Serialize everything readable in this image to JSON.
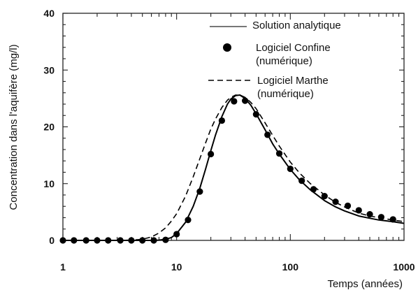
{
  "chart_data": {
    "type": "line",
    "title": "",
    "xlabel": "Temps (années)",
    "ylabel": "Concentration dans l'aquifère (mg/l)",
    "xscale": "log",
    "xlim": [
      1,
      1000
    ],
    "ylim": [
      0,
      40
    ],
    "xticks": [
      {
        "value": 1,
        "label": "1"
      },
      {
        "value": 10,
        "label": "10"
      },
      {
        "value": 100,
        "label": "100"
      },
      {
        "value": 1000,
        "label": "1000"
      }
    ],
    "yticks": [
      {
        "value": 0,
        "label": "0"
      },
      {
        "value": 10,
        "label": "10"
      },
      {
        "value": 20,
        "label": "20"
      },
      {
        "value": 30,
        "label": "30"
      },
      {
        "value": 40,
        "label": "40"
      }
    ],
    "grid": false,
    "legend_position": "top-right",
    "series": [
      {
        "name": "Solution analytique",
        "style": "solid",
        "x": [
          1,
          3,
          5,
          6,
          7,
          8,
          9,
          10,
          12,
          14,
          16,
          18,
          20,
          22,
          25,
          28,
          30,
          33,
          36,
          40,
          45,
          50,
          60,
          70,
          80,
          100,
          120,
          150,
          200,
          250,
          300,
          400,
          500,
          600,
          800,
          1000
        ],
        "y": [
          0,
          0,
          0,
          0,
          0.05,
          0.2,
          0.5,
          1.2,
          3.2,
          6.0,
          9.2,
          12.6,
          15.8,
          18.6,
          21.8,
          24.0,
          24.9,
          25.5,
          25.6,
          25.0,
          23.8,
          22.3,
          19.5,
          17.0,
          15.2,
          12.5,
          10.7,
          8.9,
          7.0,
          5.9,
          5.2,
          4.3,
          3.9,
          3.6,
          3.3,
          3.0
        ]
      },
      {
        "name": "Logiciel Confine\n(numérique)",
        "style": "markers",
        "x": [
          1,
          1.25,
          1.6,
          2,
          2.5,
          3.2,
          4,
          5,
          6.3,
          8,
          10,
          12.6,
          16,
          20,
          25,
          32,
          40,
          50,
          63,
          80,
          100,
          126,
          160,
          200,
          250,
          320,
          400,
          500,
          630,
          800
        ],
        "y": [
          0,
          0,
          0,
          0,
          0,
          0,
          0,
          0,
          0,
          0.1,
          1.1,
          3.6,
          8.6,
          15.2,
          21.1,
          24.5,
          24.6,
          22.2,
          18.6,
          15.3,
          12.6,
          10.5,
          9.0,
          7.8,
          6.8,
          6.1,
          5.3,
          4.6,
          4.1,
          3.7
        ]
      },
      {
        "name": "Logiciel Marthe\n(numérique)",
        "style": "dashed",
        "x": [
          1,
          3,
          4,
          5,
          6,
          7,
          8,
          9,
          10,
          12,
          14,
          16,
          18,
          20,
          22,
          25,
          28,
          30,
          33,
          36,
          40,
          45,
          50,
          60,
          70,
          80,
          100,
          120,
          150,
          200,
          250,
          300,
          400,
          500,
          600,
          800,
          1000
        ],
        "y": [
          0,
          0,
          0.05,
          0.2,
          0.6,
          1.3,
          2.2,
          3.4,
          4.7,
          7.8,
          11.2,
          14.4,
          17.2,
          19.6,
          21.4,
          23.4,
          24.7,
          25.2,
          25.6,
          25.6,
          25.2,
          24.3,
          23.2,
          20.7,
          18.5,
          16.6,
          13.8,
          11.9,
          10.0,
          8.0,
          6.7,
          5.9,
          4.8,
          4.3,
          4.0,
          3.6,
          3.3
        ]
      }
    ]
  }
}
